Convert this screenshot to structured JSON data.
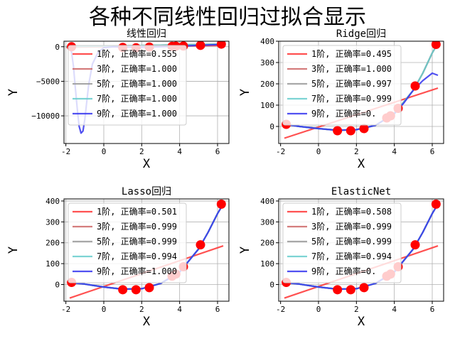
{
  "suptitle": "各种不同线性回归过拟合显示",
  "chart_data": [
    {
      "type": "line",
      "title": "线性回归",
      "xlabel": "X",
      "ylabel": "Y",
      "xlim": [
        -2.1,
        6.6
      ],
      "ylim": [
        -14000,
        800
      ],
      "xticks": [
        -2,
        0,
        2,
        4,
        6
      ],
      "yticks": [
        0,
        -5000,
        -10000
      ],
      "ytick_labels": [
        "0",
        "−5000",
        "−10000"
      ],
      "grid": true,
      "legend_position": "upper-left",
      "scatter": {
        "x": [
          -1.7,
          1.0,
          1.7,
          2.4,
          3.6,
          3.8,
          4.2,
          5.1,
          6.2
        ],
        "y": [
          0,
          -100,
          -150,
          -50,
          50,
          80,
          100,
          200,
          380
        ]
      },
      "series": [
        {
          "name": "1阶, 正确率=0.555",
          "color": "#ff3333",
          "x": [
            -2,
            6.3
          ],
          "y": [
            -60,
            190
          ]
        },
        {
          "name": "3阶, 正确率=1.000",
          "color": "#cc6666",
          "x": [
            -2,
            6.3
          ],
          "y": [
            0,
            380
          ]
        },
        {
          "name": "5阶, 正确率=1.000",
          "color": "#999999",
          "x": [
            -2,
            6.3
          ],
          "y": [
            0,
            380
          ]
        },
        {
          "name": "7阶, 正确率=1.000",
          "color": "#66cccc",
          "x": [
            -2,
            6.3
          ],
          "y": [
            0,
            380
          ]
        },
        {
          "name": "9阶, 正确率=1.000",
          "color": "#3333ee",
          "x": [
            -1.8,
            -1.7,
            -1.6,
            -1.5,
            -1.4,
            -1.3,
            -1.2,
            -1.1,
            -1.0,
            -0.9,
            -0.8,
            -0.6,
            -0.3,
            0.0,
            0.5,
            1.0,
            2.0,
            3.0,
            4.0,
            5.0,
            6.0,
            6.3
          ],
          "y": [
            -50,
            -800,
            -2800,
            -6000,
            -9000,
            -11500,
            -12500,
            -12200,
            -10500,
            -8000,
            -5500,
            -2500,
            -800,
            -150,
            0,
            -50,
            -60,
            0,
            80,
            200,
            300,
            380
          ]
        }
      ]
    },
    {
      "type": "line",
      "title": "Ridge回归",
      "xlabel": "X",
      "ylabel": "Y",
      "xlim": [
        -2.1,
        6.6
      ],
      "ylim": [
        -80,
        400
      ],
      "xticks": [
        -2,
        0,
        2,
        4,
        6
      ],
      "yticks": [
        0,
        100,
        200,
        300,
        400
      ],
      "ytick_labels": [
        "0",
        "100",
        "200",
        "300",
        "400"
      ],
      "grid": true,
      "legend_position": "upper-left",
      "scatter": {
        "x": [
          -1.7,
          1.0,
          1.7,
          2.4,
          3.6,
          3.8,
          4.2,
          5.1,
          6.2
        ],
        "y": [
          10,
          -20,
          -20,
          -10,
          40,
          50,
          85,
          190,
          385
        ]
      },
      "series": [
        {
          "name": "1阶, 正确率=0.495",
          "color": "#ff3333",
          "x": [
            -1.8,
            6.3
          ],
          "y": [
            -55,
            180
          ]
        },
        {
          "name": "3阶, 正确率=1.000",
          "color": "#cc6666",
          "x": [
            -1.8,
            -1.0,
            0.0,
            1.0,
            2.0,
            3.0,
            4.0,
            5.0,
            5.5,
            6.0,
            6.3
          ],
          "y": [
            10,
            0,
            -10,
            -18,
            -15,
            5,
            60,
            170,
            250,
            345,
            390
          ]
        },
        {
          "name": "5阶, 正确率=0.997",
          "color": "#999999",
          "x": [
            -1.8,
            -1.0,
            0.0,
            1.0,
            2.0,
            3.0,
            4.0,
            5.0,
            5.5,
            6.0,
            6.3
          ],
          "y": [
            10,
            0,
            -10,
            -18,
            -15,
            5,
            60,
            170,
            250,
            345,
            390
          ]
        },
        {
          "name": "7阶, 正确率=0.999",
          "color": "#66cccc",
          "x": [
            -1.8,
            -1.0,
            0.0,
            1.0,
            2.0,
            3.0,
            4.0,
            5.0,
            5.5,
            6.0,
            6.3
          ],
          "y": [
            10,
            0,
            -10,
            -18,
            -15,
            5,
            60,
            170,
            250,
            345,
            390
          ]
        },
        {
          "name": "9阶, 正确率=0.",
          "color": "#3333ee",
          "x": [
            -1.8,
            -1.0,
            0.0,
            1.0,
            2.0,
            3.0,
            4.0,
            4.5,
            5.0,
            5.5,
            6.0,
            6.3
          ],
          "y": [
            10,
            0,
            -10,
            -18,
            -15,
            5,
            60,
            110,
            170,
            215,
            250,
            240
          ]
        }
      ]
    },
    {
      "type": "line",
      "title": "Lasso回归",
      "xlabel": "X",
      "ylabel": "Y",
      "xlim": [
        -2.1,
        6.6
      ],
      "ylim": [
        -80,
        410
      ],
      "xticks": [
        -2,
        0,
        2,
        4,
        6
      ],
      "yticks": [
        0,
        100,
        200,
        300,
        400
      ],
      "ytick_labels": [
        "0",
        "100",
        "200",
        "300",
        "400"
      ],
      "grid": true,
      "legend_position": "upper-left",
      "scatter": {
        "x": [
          -1.7,
          1.0,
          1.7,
          2.4,
          3.6,
          3.8,
          4.2,
          5.1,
          6.2
        ],
        "y": [
          10,
          -25,
          -25,
          -15,
          40,
          50,
          85,
          190,
          385
        ]
      },
      "series": [
        {
          "name": "1阶, 正确率=0.501",
          "color": "#ff3333",
          "x": [
            -1.8,
            6.3
          ],
          "y": [
            -65,
            185
          ]
        },
        {
          "name": "3阶, 正确率=0.999",
          "color": "#cc6666",
          "x": [
            -1.8,
            -1.0,
            0.0,
            1.0,
            2.0,
            3.0,
            4.0,
            5.0,
            5.5,
            6.0,
            6.3
          ],
          "y": [
            10,
            2,
            -12,
            -22,
            -20,
            5,
            60,
            170,
            250,
            340,
            385
          ]
        },
        {
          "name": "5阶, 正确率=0.999",
          "color": "#999999",
          "x": [
            -1.8,
            -1.0,
            0.0,
            1.0,
            2.0,
            3.0,
            4.0,
            5.0,
            5.5,
            6.0,
            6.3
          ],
          "y": [
            10,
            2,
            -12,
            -22,
            -20,
            5,
            60,
            170,
            250,
            340,
            385
          ]
        },
        {
          "name": "7阶, 正确率=0.994",
          "color": "#66cccc",
          "x": [
            -1.8,
            -1.0,
            0.0,
            1.0,
            2.0,
            3.0,
            4.0,
            5.0,
            5.5,
            6.0,
            6.3
          ],
          "y": [
            10,
            2,
            -12,
            -22,
            -20,
            5,
            60,
            170,
            250,
            340,
            385
          ]
        },
        {
          "name": "9阶, 正确率=1.000",
          "color": "#3333ee",
          "x": [
            -1.8,
            -1.0,
            0.0,
            1.0,
            2.0,
            3.0,
            4.0,
            5.0,
            5.5,
            6.0,
            6.3
          ],
          "y": [
            10,
            2,
            -12,
            -22,
            -20,
            5,
            60,
            170,
            250,
            340,
            385
          ]
        }
      ]
    },
    {
      "type": "line",
      "title": "ElasticNet",
      "xlabel": "X",
      "ylabel": "Y",
      "xlim": [
        -2.1,
        6.6
      ],
      "ylim": [
        -80,
        410
      ],
      "xticks": [
        -2,
        0,
        2,
        4,
        6
      ],
      "yticks": [
        0,
        100,
        200,
        300,
        400
      ],
      "ytick_labels": [
        "0",
        "100",
        "200",
        "300",
        "400"
      ],
      "grid": true,
      "legend_position": "upper-left",
      "scatter": {
        "x": [
          -1.7,
          1.0,
          1.7,
          2.4,
          3.6,
          3.8,
          4.2,
          5.1,
          6.2
        ],
        "y": [
          10,
          -25,
          -25,
          -15,
          40,
          50,
          85,
          190,
          385
        ]
      },
      "series": [
        {
          "name": "1阶, 正确率=0.508",
          "color": "#ff3333",
          "x": [
            -1.8,
            6.3
          ],
          "y": [
            -65,
            185
          ]
        },
        {
          "name": "3阶, 正确率=0.999",
          "color": "#cc6666",
          "x": [
            -1.8,
            -1.0,
            0.0,
            1.0,
            2.0,
            3.0,
            4.0,
            5.0,
            5.5,
            6.0,
            6.3
          ],
          "y": [
            10,
            2,
            -12,
            -22,
            -20,
            5,
            60,
            170,
            250,
            340,
            385
          ]
        },
        {
          "name": "5阶, 正确率=0.999",
          "color": "#999999",
          "x": [
            -1.8,
            -1.0,
            0.0,
            1.0,
            2.0,
            3.0,
            4.0,
            5.0,
            5.5,
            6.0,
            6.3
          ],
          "y": [
            10,
            2,
            -12,
            -22,
            -20,
            5,
            60,
            170,
            250,
            340,
            385
          ]
        },
        {
          "name": "7阶, 正确率=0.994",
          "color": "#66cccc",
          "x": [
            -1.8,
            -1.0,
            0.0,
            1.0,
            2.0,
            3.0,
            4.0,
            5.0,
            5.5,
            6.0,
            6.3
          ],
          "y": [
            10,
            2,
            -12,
            -22,
            -20,
            5,
            60,
            170,
            250,
            340,
            385
          ]
        },
        {
          "name": "9阶, 正确率=0.",
          "color": "#3333ee",
          "x": [
            -1.8,
            -1.0,
            0.0,
            1.0,
            2.0,
            3.0,
            4.0,
            5.0,
            5.5,
            6.0,
            6.3
          ],
          "y": [
            10,
            2,
            -12,
            -22,
            -20,
            5,
            60,
            170,
            250,
            340,
            385
          ]
        }
      ]
    }
  ]
}
